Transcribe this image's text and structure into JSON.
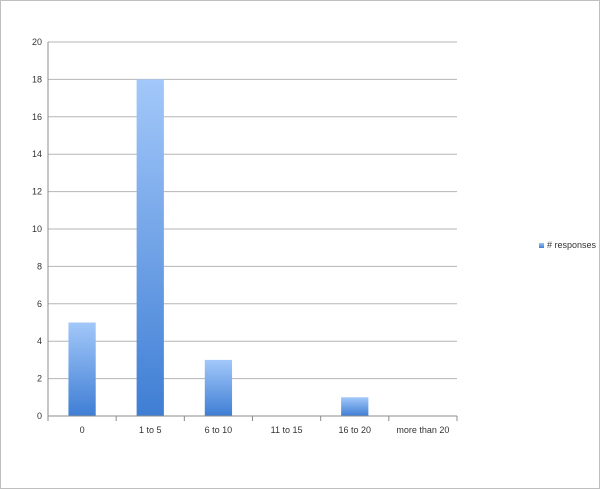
{
  "chart_data": {
    "type": "bar",
    "title": "",
    "xlabel": "",
    "ylabel": "",
    "categories": [
      "0",
      "1 to 5",
      "6 to 10",
      "11 to 15",
      "16 to 20",
      "more than 20"
    ],
    "series": [
      {
        "name": "# responses",
        "values": [
          5,
          18,
          3,
          0,
          1,
          0
        ],
        "color": "#4a86d8"
      }
    ],
    "ylim": [
      0,
      20
    ],
    "yticks": [
      "0",
      "2",
      "4",
      "6",
      "8",
      "10",
      "12",
      "14",
      "16",
      "18",
      "20"
    ],
    "grid": true,
    "legend": "right"
  }
}
